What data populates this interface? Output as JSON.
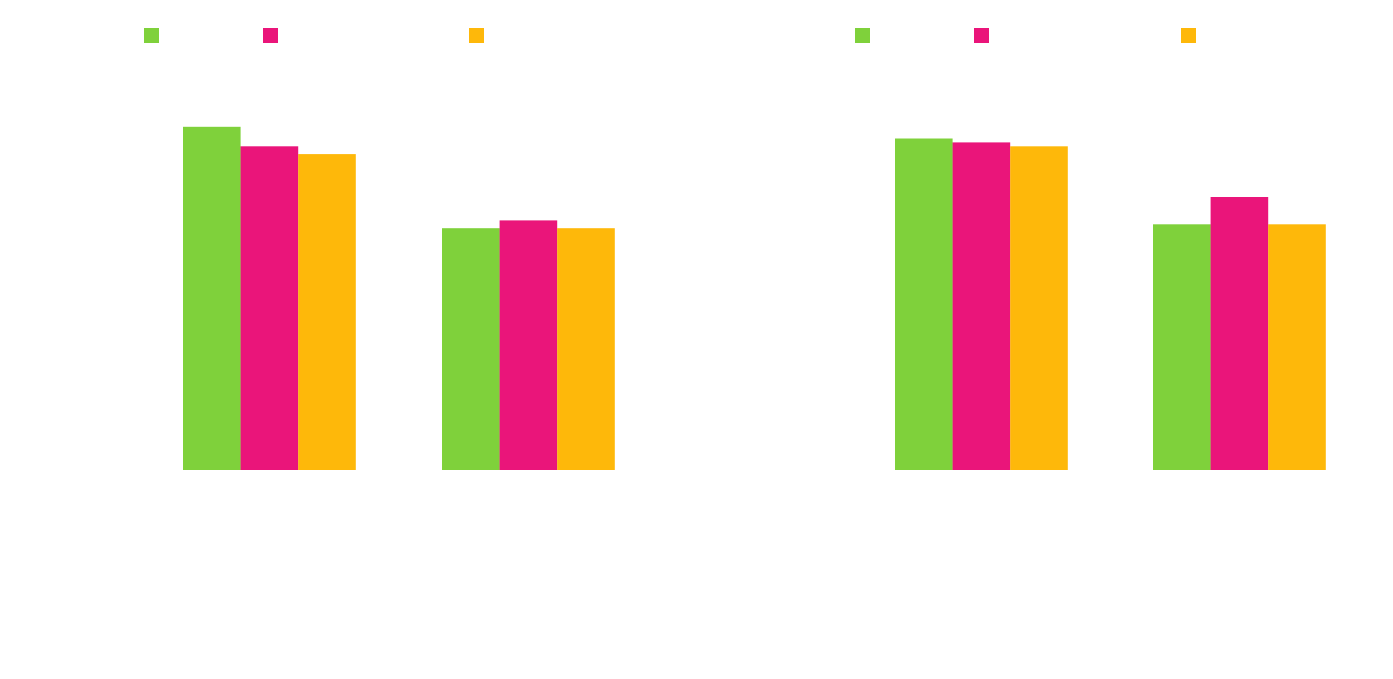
{
  "colors": {
    "series_1": "#7fd13b",
    "series_2": "#ea157a",
    "series_3": "#feb80a",
    "background": "#ffffff"
  },
  "chart_data": [
    {
      "type": "bar",
      "categories": [
        "",
        ""
      ],
      "series": [
        {
          "color": "#7fd13b",
          "values": [
            0.88,
            0.62
          ]
        },
        {
          "color": "#ea157a",
          "values": [
            0.83,
            0.64
          ]
        },
        {
          "color": "#feb80a",
          "values": [
            0.81,
            0.62
          ]
        }
      ],
      "ylim": [
        0,
        1
      ],
      "grid": false,
      "legend": "top"
    },
    {
      "type": "bar",
      "categories": [
        "",
        ""
      ],
      "series": [
        {
          "color": "#7fd13b",
          "values": [
            0.85,
            0.63
          ]
        },
        {
          "color": "#ea157a",
          "values": [
            0.84,
            0.7
          ]
        },
        {
          "color": "#feb80a",
          "values": [
            0.83,
            0.63
          ]
        }
      ],
      "ylim": [
        0,
        1
      ],
      "grid": false,
      "legend": "top"
    }
  ]
}
